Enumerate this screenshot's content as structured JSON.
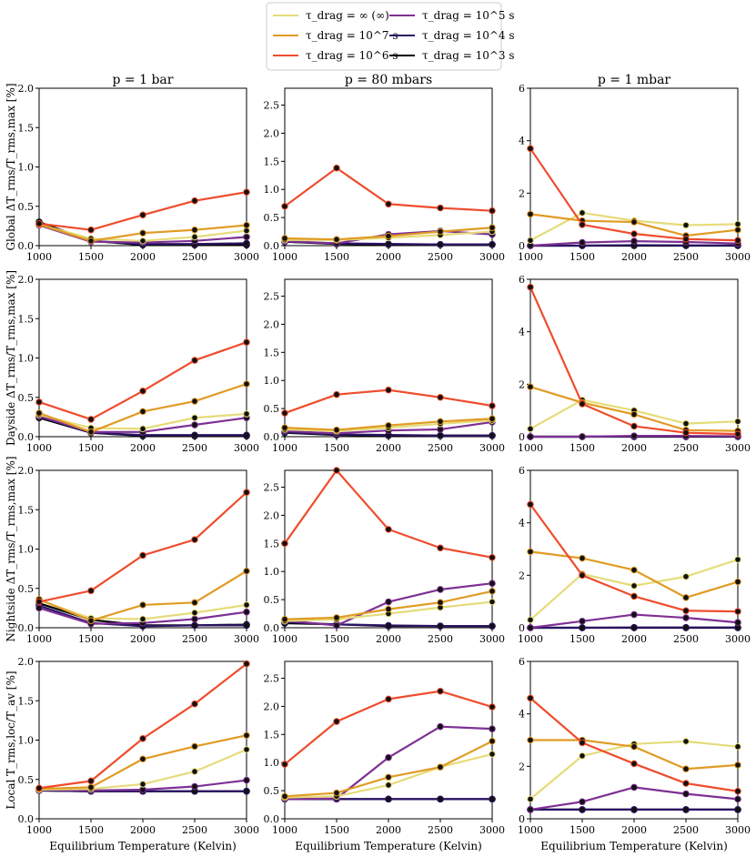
{
  "chart_data": {
    "type": "line",
    "legend": {
      "placement": "top-center",
      "entries": [
        {
          "key": "inf",
          "label": "τ_drag = ∞ (∞)",
          "color": "#e6db7a"
        },
        {
          "key": "1e7",
          "label": "τ_drag = 10^7 s",
          "color": "#e09b24"
        },
        {
          "key": "1e6",
          "label": "τ_drag = 10^6 s",
          "color": "#ef4c2c"
        },
        {
          "key": "1e5",
          "label": "τ_drag = 10^5 s",
          "color": "#7e3094"
        },
        {
          "key": "1e4",
          "label": "τ_drag = 10^4 s",
          "color": "#2b1566"
        },
        {
          "key": "1e3",
          "label": "τ_drag = 10^3 s",
          "color": "#000000"
        }
      ]
    },
    "column_titles": [
      "p = 1 bar",
      "p = 80 mbars",
      "p = 1 mbar"
    ],
    "row_labels": [
      "Global ΔT_rms/T_rms,max [%]",
      "Dayside ΔT_rms/T_rms,max [%]",
      "Nightside ΔT_rms/T_rms,max [%]",
      "Local T_rms,loc/T_av [%]"
    ],
    "xlabel": "Equilibrium Temperature (Kelvin)",
    "x": [
      1000,
      1500,
      2000,
      2500,
      3000
    ],
    "xlim": [
      1000,
      3000
    ],
    "xticks": [
      1000,
      1500,
      2000,
      2500,
      3000
    ],
    "panels": [
      {
        "row": 0,
        "col": 0,
        "ylim": [
          0,
          2.0
        ],
        "yticks": [
          "0.0",
          "0.5",
          "1.0",
          "1.5",
          "2.0"
        ],
        "series": {
          "inf": [
            0.27,
            0.09,
            0.06,
            0.11,
            0.19
          ],
          "1e7": [
            0.27,
            0.06,
            0.16,
            0.2,
            0.26
          ],
          "1e6": [
            0.28,
            0.2,
            0.39,
            0.57,
            0.68
          ],
          "1e5": [
            0.26,
            0.05,
            0.04,
            0.06,
            0.11
          ],
          "1e4": [
            0.27,
            0.06,
            0.02,
            0.02,
            0.03
          ],
          "1e3": [
            0.3,
            0.06,
            0.01,
            0.01,
            0.01
          ]
        }
      },
      {
        "row": 0,
        "col": 1,
        "ylim": [
          0,
          2.8
        ],
        "yticks": [
          "0.0",
          "0.5",
          "1.0",
          "1.5",
          "2.0",
          "2.5"
        ],
        "series": {
          "inf": [
            0.1,
            0.1,
            0.14,
            0.19,
            0.25
          ],
          "1e7": [
            0.13,
            0.11,
            0.17,
            0.25,
            0.32
          ],
          "1e6": [
            0.7,
            1.38,
            0.74,
            0.67,
            0.62
          ],
          "1e5": [
            0.08,
            0.04,
            0.2,
            0.26,
            0.2
          ],
          "1e4": [
            0.07,
            0.04,
            0.03,
            0.02,
            0.02
          ],
          "1e3": [
            0.07,
            0.03,
            0.02,
            0.02,
            0.02
          ]
        }
      },
      {
        "row": 0,
        "col": 2,
        "ylim": [
          0,
          6
        ],
        "yticks": [
          "0",
          "2",
          "4",
          "6"
        ],
        "series": {
          "inf": [
            0.2,
            1.25,
            0.95,
            0.78,
            0.82
          ],
          "1e7": [
            1.2,
            0.95,
            0.9,
            0.38,
            0.6
          ],
          "1e6": [
            3.7,
            0.8,
            0.45,
            0.25,
            0.2
          ],
          "1e5": [
            0.0,
            0.12,
            0.17,
            0.14,
            0.08
          ],
          "1e4": [
            0.0,
            0.0,
            0.02,
            0.01,
            0.01
          ],
          "1e3": [
            0.0,
            0.0,
            0.0,
            0.0,
            0.0
          ]
        }
      },
      {
        "row": 1,
        "col": 0,
        "ylim": [
          0,
          2.0
        ],
        "yticks": [
          "0.0",
          "0.5",
          "1.0",
          "1.5",
          "2.0"
        ],
        "series": {
          "inf": [
            0.28,
            0.11,
            0.1,
            0.24,
            0.29
          ],
          "1e7": [
            0.3,
            0.06,
            0.32,
            0.45,
            0.67
          ],
          "1e6": [
            0.44,
            0.22,
            0.58,
            0.97,
            1.2
          ],
          "1e5": [
            0.26,
            0.06,
            0.06,
            0.15,
            0.24
          ],
          "1e4": [
            0.26,
            0.05,
            0.02,
            0.02,
            0.02
          ],
          "1e3": [
            0.24,
            0.05,
            0.01,
            0.01,
            0.01
          ]
        }
      },
      {
        "row": 1,
        "col": 1,
        "ylim": [
          0,
          2.8
        ],
        "yticks": [
          "0.0",
          "0.5",
          "1.0",
          "1.5",
          "2.0",
          "2.5"
        ],
        "series": {
          "inf": [
            0.13,
            0.1,
            0.16,
            0.23,
            0.29
          ],
          "1e7": [
            0.16,
            0.12,
            0.2,
            0.27,
            0.32
          ],
          "1e6": [
            0.42,
            0.75,
            0.83,
            0.7,
            0.55
          ],
          "1e5": [
            0.1,
            0.06,
            0.11,
            0.13,
            0.26
          ],
          "1e4": [
            0.08,
            0.04,
            0.03,
            0.02,
            0.02
          ],
          "1e3": [
            0.07,
            0.03,
            0.02,
            0.02,
            0.02
          ]
        }
      },
      {
        "row": 1,
        "col": 2,
        "ylim": [
          0,
          6
        ],
        "yticks": [
          "0",
          "2",
          "4",
          "6"
        ],
        "series": {
          "inf": [
            0.3,
            1.4,
            1.0,
            0.5,
            0.58
          ],
          "1e7": [
            1.9,
            1.3,
            0.85,
            0.25,
            0.22
          ],
          "1e6": [
            5.7,
            1.25,
            0.4,
            0.15,
            0.1
          ],
          "1e5": [
            0.0,
            0.0,
            0.03,
            0.03,
            0.02
          ],
          "1e4": [
            0.0,
            0.0,
            0.01,
            0.01,
            0.01
          ],
          "1e3": [
            0.0,
            0.0,
            0.0,
            0.0,
            0.0
          ]
        }
      },
      {
        "row": 2,
        "col": 0,
        "ylim": [
          0,
          2.0
        ],
        "yticks": [
          "0.0",
          "0.5",
          "1.0",
          "1.5",
          "2.0"
        ],
        "series": {
          "inf": [
            0.35,
            0.12,
            0.11,
            0.19,
            0.29
          ],
          "1e7": [
            0.36,
            0.09,
            0.29,
            0.32,
            0.72
          ],
          "1e6": [
            0.33,
            0.47,
            0.92,
            1.12,
            1.72
          ],
          "1e5": [
            0.25,
            0.05,
            0.06,
            0.11,
            0.2
          ],
          "1e4": [
            0.28,
            0.06,
            0.02,
            0.03,
            0.03
          ],
          "1e3": [
            0.31,
            0.1,
            0.03,
            0.03,
            0.04
          ]
        }
      },
      {
        "row": 2,
        "col": 1,
        "ylim": [
          0,
          2.8
        ],
        "yticks": [
          "0.0",
          "0.5",
          "1.0",
          "1.5",
          "2.0",
          "2.5"
        ],
        "series": {
          "inf": [
            0.12,
            0.15,
            0.25,
            0.36,
            0.46
          ],
          "1e7": [
            0.15,
            0.18,
            0.33,
            0.45,
            0.65
          ],
          "1e6": [
            1.5,
            2.8,
            1.75,
            1.42,
            1.25
          ],
          "1e5": [
            0.13,
            0.04,
            0.46,
            0.68,
            0.79
          ],
          "1e4": [
            0.1,
            0.06,
            0.04,
            0.03,
            0.03
          ],
          "1e3": [
            0.08,
            0.06,
            0.03,
            0.03,
            0.03
          ]
        }
      },
      {
        "row": 2,
        "col": 2,
        "ylim": [
          0,
          6
        ],
        "yticks": [
          "0",
          "2",
          "4",
          "6"
        ],
        "series": {
          "inf": [
            0.3,
            2.05,
            1.6,
            1.95,
            2.6
          ],
          "1e7": [
            2.9,
            2.65,
            2.2,
            1.15,
            1.75
          ],
          "1e6": [
            4.7,
            2.0,
            1.2,
            0.65,
            0.62
          ],
          "1e5": [
            0.0,
            0.25,
            0.5,
            0.38,
            0.2
          ],
          "1e4": [
            0.0,
            0.0,
            0.01,
            0.01,
            0.01
          ],
          "1e3": [
            0.0,
            0.0,
            0.0,
            0.0,
            0.0
          ]
        }
      },
      {
        "row": 3,
        "col": 0,
        "ylim": [
          0,
          2.0
        ],
        "yticks": [
          "0.0",
          "0.5",
          "1.0",
          "1.5",
          "2.0"
        ],
        "series": {
          "inf": [
            0.37,
            0.38,
            0.44,
            0.6,
            0.88
          ],
          "1e7": [
            0.38,
            0.4,
            0.76,
            0.92,
            1.06
          ],
          "1e6": [
            0.39,
            0.48,
            1.02,
            1.46,
            1.97
          ],
          "1e5": [
            0.37,
            0.36,
            0.37,
            0.41,
            0.49
          ],
          "1e4": [
            0.36,
            0.35,
            0.35,
            0.35,
            0.35
          ],
          "1e3": [
            0.36,
            0.35,
            0.35,
            0.35,
            0.35
          ]
        }
      },
      {
        "row": 3,
        "col": 1,
        "ylim": [
          0,
          2.8
        ],
        "yticks": [
          "0.0",
          "0.5",
          "1.0",
          "1.5",
          "2.0",
          "2.5"
        ],
        "series": {
          "inf": [
            0.38,
            0.4,
            0.6,
            0.92,
            1.15
          ],
          "1e7": [
            0.4,
            0.46,
            0.74,
            0.92,
            1.38
          ],
          "1e6": [
            0.97,
            1.73,
            2.13,
            2.27,
            1.99
          ],
          "1e5": [
            0.35,
            0.36,
            1.09,
            1.64,
            1.6
          ],
          "1e4": [
            0.35,
            0.35,
            0.35,
            0.35,
            0.35
          ],
          "1e3": [
            0.35,
            0.35,
            0.35,
            0.35,
            0.35
          ]
        }
      },
      {
        "row": 3,
        "col": 2,
        "ylim": [
          0,
          6
        ],
        "yticks": [
          "0",
          "2",
          "4",
          "6"
        ],
        "series": {
          "inf": [
            0.75,
            2.4,
            2.85,
            2.95,
            2.75
          ],
          "1e7": [
            3.0,
            3.0,
            2.75,
            1.9,
            2.05
          ],
          "1e6": [
            4.6,
            2.9,
            2.1,
            1.35,
            1.05
          ],
          "1e5": [
            0.35,
            0.65,
            1.2,
            0.95,
            0.75
          ],
          "1e4": [
            0.35,
            0.35,
            0.35,
            0.35,
            0.35
          ],
          "1e3": [
            0.35,
            0.35,
            0.35,
            0.35,
            0.35
          ]
        }
      }
    ]
  }
}
